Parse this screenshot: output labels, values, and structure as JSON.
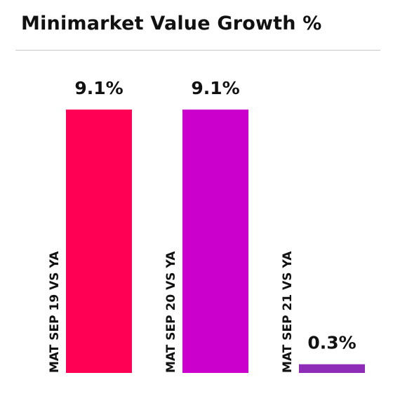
{
  "header": {
    "title": "Minimarket Value Growth %"
  },
  "chart_data": {
    "type": "bar",
    "title": "Minimarket Value Growth %",
    "categories": [
      "MAT SEP 19 VS YA",
      "MAT SEP 20 VS YA",
      "MAT SEP 21 VS YA"
    ],
    "values": [
      9.1,
      9.1,
      0.3
    ],
    "value_labels": [
      "9.1%",
      "9.1%",
      "0.3%"
    ],
    "colors": [
      "#ff0055",
      "#cc00cc",
      "#8e2cb8"
    ],
    "ylim": [
      0,
      9.1
    ],
    "grid": false,
    "legend": "none"
  }
}
